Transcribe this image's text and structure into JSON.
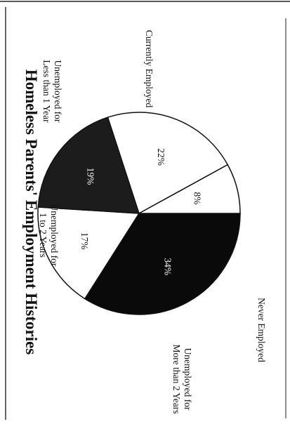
{
  "chart_data": {
    "type": "pie",
    "title": "Homeless Parents' Employment Histories",
    "slices": [
      {
        "label": "Never Employed",
        "value": 34,
        "value_label": "34%",
        "color": "#0a0a0a",
        "text_color": "#ffffff"
      },
      {
        "label": "Unemployed for More than 2 Years",
        "label_lines": [
          "Unemployed for",
          "More than 2 Years"
        ],
        "value": 17,
        "value_label": "17%",
        "color": "#ffffff",
        "text_color": "#111111"
      },
      {
        "label": "Unemployed for 1 to 2 Years",
        "label_lines": [
          "Unemployed for",
          "1 to 2 Years"
        ],
        "value": 19,
        "value_label": "19%",
        "color": "#1c1c1c",
        "text_color": "#ffffff"
      },
      {
        "label": "Unemployed for Less than 1 Year",
        "label_lines": [
          "Unemployed for",
          "Less than 1 Year"
        ],
        "value": 22,
        "value_label": "22%",
        "color": "#ffffff",
        "text_color": "#111111"
      },
      {
        "label": "Currently Employed",
        "value": 8,
        "value_label": "8%",
        "color": "#ffffff",
        "text_color": "#111111"
      }
    ]
  }
}
